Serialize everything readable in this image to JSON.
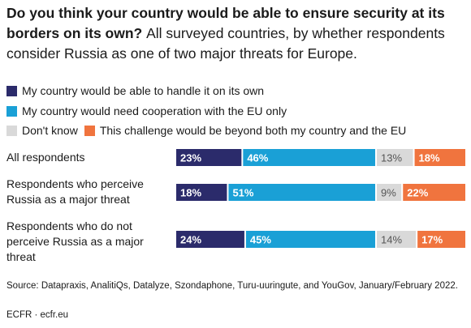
{
  "title_bold": "Do you think your country would be able to ensure security at its borders on its own?",
  "title_rest": "All surveyed countries, by whether respondents consider Russia as one of two major threats for Europe.",
  "source": "Source: Datapraxis, AnalitiQs, Datalyze, Szondaphone, Turu-uuringute, and YouGov, January/February 2022.",
  "credit": "ECFR · ecfr.eu",
  "colors": {
    "own": "#2b2b6b",
    "eu": "#1aa0d6",
    "dontknow": "#d9d9d9",
    "beyond": "#f0743e",
    "label_light": "#ffffff",
    "label_dark": "#555555"
  },
  "legend": [
    {
      "label": "My country would be able to handle it on its own"
    },
    {
      "label": "My country would need cooperation with the EU only"
    },
    {
      "label": "Don't know"
    },
    {
      "label": "This challenge would be beyond both my country and the EU"
    }
  ],
  "chart_data": {
    "type": "bar",
    "orientation": "horizontal",
    "stacked": true,
    "categories": [
      "All respondents",
      "Respondents who perceive Russia as a major threat",
      "Respondents who do not perceive Russia as a major threat"
    ],
    "series": [
      {
        "name": "My country would be able to handle it on its own",
        "values": [
          23,
          18,
          24
        ],
        "labels": [
          "23%",
          "18%",
          "24%"
        ]
      },
      {
        "name": "My country would need cooperation with the EU only",
        "values": [
          46,
          51,
          45
        ],
        "labels": [
          "46%",
          "51%",
          "45%"
        ]
      },
      {
        "name": "Don't know",
        "values": [
          13,
          9,
          14
        ],
        "labels": [
          "13%",
          "9%",
          "14%"
        ]
      },
      {
        "name": "This challenge would be beyond both my country and the EU",
        "values": [
          18,
          22,
          17
        ],
        "labels": [
          "18%",
          "22%",
          "17%"
        ]
      }
    ]
  }
}
